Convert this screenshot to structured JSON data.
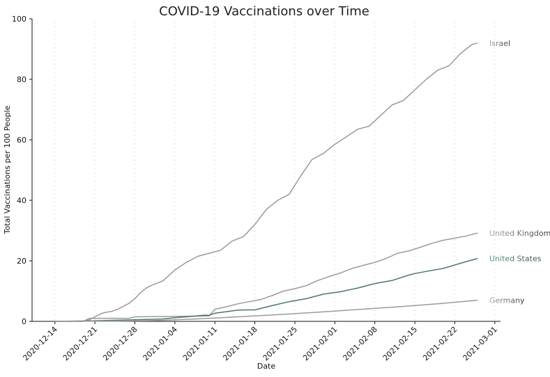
{
  "chart_data": {
    "type": "line",
    "title": "COVID-19 Vaccinations over Time",
    "xlabel": "Date",
    "ylabel": "Total Vaccinations per 100 People",
    "ylim": [
      0,
      100
    ],
    "xlim": [
      "2020-12-10",
      "2021-03-02"
    ],
    "grid": "x-dotted",
    "legend": "inline-right",
    "yticks": [
      0,
      20,
      40,
      60,
      80,
      100
    ],
    "xticks": [
      "2020-12-14",
      "2020-12-21",
      "2020-12-28",
      "2021-01-04",
      "2021-01-11",
      "2021-01-18",
      "2021-01-25",
      "2021-02-01",
      "2021-02-08",
      "2021-02-15",
      "2021-02-22",
      "2021-03-01"
    ],
    "series": [
      {
        "name": "Israel",
        "color": "#9a9a9a",
        "label_color_head": "#aaaaaa",
        "label_color_tail": "#3a3a3a",
        "x": [
          "2020-12-14",
          "2020-12-19",
          "2020-12-20",
          "2020-12-21",
          "2020-12-22",
          "2020-12-23",
          "2020-12-24",
          "2020-12-25",
          "2020-12-27",
          "2020-12-28",
          "2020-12-29",
          "2020-12-30",
          "2020-12-31",
          "2021-01-01",
          "2021-01-02",
          "2021-01-04",
          "2021-01-06",
          "2021-01-08",
          "2021-01-10",
          "2021-01-12",
          "2021-01-14",
          "2021-01-16",
          "2021-01-18",
          "2021-01-20",
          "2021-01-22",
          "2021-01-24",
          "2021-01-26",
          "2021-01-28",
          "2021-01-30",
          "2021-02-01",
          "2021-02-03",
          "2021-02-05",
          "2021-02-07",
          "2021-02-09",
          "2021-02-11",
          "2021-02-13",
          "2021-02-15",
          "2021-02-17",
          "2021-02-19",
          "2021-02-21",
          "2021-02-23",
          "2021-02-25",
          "2021-02-26"
        ],
        "values": [
          0,
          0,
          0.5,
          1.5,
          2.5,
          3.0,
          3.3,
          4.0,
          6.0,
          7.5,
          9.5,
          11.0,
          12.0,
          12.7,
          13.5,
          17.0,
          19.5,
          21.5,
          22.5,
          23.5,
          26.5,
          28.0,
          32.0,
          37.0,
          40.0,
          42.0,
          48.0,
          53.5,
          55.5,
          58.5,
          61.0,
          63.5,
          64.5,
          68.0,
          71.5,
          73.0,
          76.5,
          80.0,
          83.0,
          84.5,
          88.5,
          91.5,
          92.0
        ]
      },
      {
        "name": "United Kingdom",
        "color": "#9a9a9a",
        "label_color_head": "#aaaaaa",
        "label_color_tail": "#3a3a3a",
        "x": [
          "2020-12-14",
          "2020-12-19",
          "2020-12-20",
          "2020-12-27",
          "2020-12-28",
          "2021-01-10",
          "2021-01-11",
          "2021-01-13",
          "2021-01-15",
          "2021-01-17",
          "2021-01-19",
          "2021-01-21",
          "2021-01-23",
          "2021-01-25",
          "2021-01-27",
          "2021-01-29",
          "2021-01-31",
          "2021-02-02",
          "2021-02-04",
          "2021-02-06",
          "2021-02-08",
          "2021-02-10",
          "2021-02-12",
          "2021-02-14",
          "2021-02-16",
          "2021-02-18",
          "2021-02-20",
          "2021-02-22",
          "2021-02-24",
          "2021-02-26"
        ],
        "values": [
          0,
          0,
          1.0,
          1.0,
          1.5,
          1.8,
          4.0,
          4.8,
          5.8,
          6.5,
          7.2,
          8.5,
          10.0,
          10.8,
          11.8,
          13.5,
          14.8,
          16.0,
          17.5,
          18.5,
          19.5,
          20.8,
          22.5,
          23.3,
          24.5,
          25.8,
          26.8,
          27.5,
          28.2,
          29.2
        ]
      },
      {
        "name": "United States",
        "color": "#4a7a5e",
        "label_color_head": "#6a9a7e",
        "label_color_tail": "#2e5a40",
        "x": [
          "2020-12-14",
          "2020-12-21",
          "2020-12-28",
          "2021-01-02",
          "2021-01-04",
          "2021-01-06",
          "2021-01-09",
          "2021-01-10",
          "2021-01-11",
          "2021-01-13",
          "2021-01-15",
          "2021-01-17",
          "2021-01-18",
          "2021-01-21",
          "2021-01-24",
          "2021-01-27",
          "2021-01-30",
          "2021-02-02",
          "2021-02-05",
          "2021-02-08",
          "2021-02-11",
          "2021-02-14",
          "2021-02-15",
          "2021-02-17",
          "2021-02-20",
          "2021-02-23",
          "2021-02-26"
        ],
        "values": [
          0,
          0.2,
          0.5,
          0.8,
          1.2,
          1.5,
          2.0,
          2.0,
          2.7,
          3.2,
          3.7,
          3.8,
          3.8,
          5.2,
          6.5,
          7.5,
          9.0,
          9.8,
          11.0,
          12.5,
          13.5,
          15.3,
          15.8,
          16.5,
          17.5,
          19.2,
          20.8
        ]
      },
      {
        "name": "Germany",
        "color": "#9a9a9a",
        "label_color_head": "#aaaaaa",
        "label_color_tail": "#3a3a3a",
        "x": [
          "2020-12-14",
          "2020-12-26",
          "2021-01-01",
          "2021-01-08",
          "2021-01-15",
          "2021-01-22",
          "2021-01-29",
          "2021-02-05",
          "2021-02-12",
          "2021-02-19",
          "2021-02-26"
        ],
        "values": [
          0,
          0.1,
          0.3,
          0.8,
          1.5,
          2.2,
          3.0,
          3.9,
          4.8,
          5.8,
          7.0
        ]
      }
    ]
  }
}
